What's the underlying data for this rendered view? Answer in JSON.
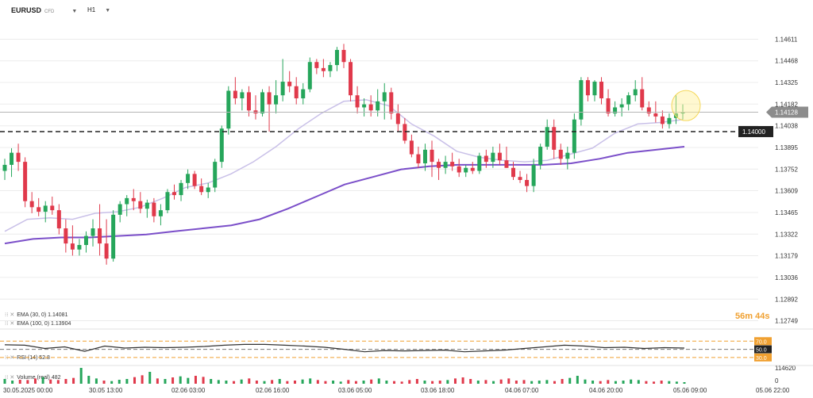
{
  "header": {
    "symbol": "EURUSD",
    "symbol_tag": "CFD",
    "timeframe": "H1"
  },
  "legend": {
    "ema30": "EMA (30, 0) 1.14081",
    "ema100": "EMA (100, 0) 1.13904",
    "rsi": "RSI (14) 52.8",
    "volume": "Volume (real) 482"
  },
  "timer": {
    "minutes": "56m",
    "seconds": "44s"
  },
  "colors": {
    "up": "#26a65b",
    "down": "#e0394b",
    "ema30": "#c9c0e8",
    "ema100": "#7b4fc9",
    "rsi": "#333333",
    "level": "#f0a030",
    "grid": "#ececec"
  },
  "chart_data": {
    "type": "candlestick",
    "price_axis": {
      "ticks": [
        "1.14611",
        "1.14468",
        "1.14325",
        "1.14182",
        "1.14038",
        "1.13895",
        "1.13752",
        "1.13609",
        "1.13465",
        "1.13322",
        "1.13179",
        "1.13036",
        "1.12892",
        "1.12749"
      ],
      "range": [
        1.1271,
        1.1465
      ]
    },
    "current_price": "1.14128",
    "reference_level": "1.14000",
    "time_labels": [
      "30.05.2025 00:00",
      "30.05 13:00",
      "02.06 03:00",
      "02.06 16:00",
      "03.06 05:00",
      "03.06 18:00",
      "04.06 07:00",
      "04.06 20:00",
      "05.06 09:00",
      "05.06 22:00"
    ],
    "candles": [
      {
        "o": 1.1374,
        "h": 1.1382,
        "l": 1.1368,
        "c": 1.1378
      },
      {
        "o": 1.1378,
        "h": 1.1389,
        "l": 1.137,
        "c": 1.1386
      },
      {
        "o": 1.1386,
        "h": 1.1392,
        "l": 1.1374,
        "c": 1.138
      },
      {
        "o": 1.138,
        "h": 1.1383,
        "l": 1.135,
        "c": 1.1354
      },
      {
        "o": 1.1354,
        "h": 1.136,
        "l": 1.1346,
        "c": 1.135
      },
      {
        "o": 1.135,
        "h": 1.1356,
        "l": 1.1344,
        "c": 1.1347
      },
      {
        "o": 1.1347,
        "h": 1.1354,
        "l": 1.134,
        "c": 1.1351
      },
      {
        "o": 1.1351,
        "h": 1.1357,
        "l": 1.1345,
        "c": 1.1348
      },
      {
        "o": 1.1348,
        "h": 1.1352,
        "l": 1.1332,
        "c": 1.1336
      },
      {
        "o": 1.1336,
        "h": 1.1342,
        "l": 1.132,
        "c": 1.1326
      },
      {
        "o": 1.1326,
        "h": 1.1338,
        "l": 1.1318,
        "c": 1.1322
      },
      {
        "o": 1.1322,
        "h": 1.1329,
        "l": 1.1318,
        "c": 1.1325
      },
      {
        "o": 1.1325,
        "h": 1.1334,
        "l": 1.132,
        "c": 1.1331
      },
      {
        "o": 1.1331,
        "h": 1.1342,
        "l": 1.1324,
        "c": 1.1336
      },
      {
        "o": 1.1336,
        "h": 1.1352,
        "l": 1.1318,
        "c": 1.1326
      },
      {
        "o": 1.1326,
        "h": 1.1342,
        "l": 1.1312,
        "c": 1.1316
      },
      {
        "o": 1.1316,
        "h": 1.1348,
        "l": 1.1314,
        "c": 1.1345
      },
      {
        "o": 1.1345,
        "h": 1.1354,
        "l": 1.134,
        "c": 1.1352
      },
      {
        "o": 1.1352,
        "h": 1.1358,
        "l": 1.1344,
        "c": 1.1356
      },
      {
        "o": 1.1356,
        "h": 1.1362,
        "l": 1.1348,
        "c": 1.1354
      },
      {
        "o": 1.1354,
        "h": 1.136,
        "l": 1.1346,
        "c": 1.1349
      },
      {
        "o": 1.1349,
        "h": 1.1355,
        "l": 1.1343,
        "c": 1.1353
      },
      {
        "o": 1.1353,
        "h": 1.1356,
        "l": 1.134,
        "c": 1.1344
      },
      {
        "o": 1.1344,
        "h": 1.1352,
        "l": 1.1338,
        "c": 1.1348
      },
      {
        "o": 1.1348,
        "h": 1.1362,
        "l": 1.1346,
        "c": 1.136
      },
      {
        "o": 1.136,
        "h": 1.1365,
        "l": 1.1355,
        "c": 1.1358
      },
      {
        "o": 1.1358,
        "h": 1.1368,
        "l": 1.1354,
        "c": 1.1366
      },
      {
        "o": 1.1366,
        "h": 1.1375,
        "l": 1.1362,
        "c": 1.1372
      },
      {
        "o": 1.1372,
        "h": 1.1374,
        "l": 1.1362,
        "c": 1.1364
      },
      {
        "o": 1.1364,
        "h": 1.1369,
        "l": 1.1358,
        "c": 1.136
      },
      {
        "o": 1.136,
        "h": 1.1366,
        "l": 1.1356,
        "c": 1.1363
      },
      {
        "o": 1.1363,
        "h": 1.1382,
        "l": 1.136,
        "c": 1.138
      },
      {
        "o": 1.138,
        "h": 1.1404,
        "l": 1.1376,
        "c": 1.1402
      },
      {
        "o": 1.1402,
        "h": 1.143,
        "l": 1.1398,
        "c": 1.1427
      },
      {
        "o": 1.1427,
        "h": 1.1436,
        "l": 1.1418,
        "c": 1.1422
      },
      {
        "o": 1.1422,
        "h": 1.1428,
        "l": 1.1414,
        "c": 1.1426
      },
      {
        "o": 1.1426,
        "h": 1.143,
        "l": 1.141,
        "c": 1.1414
      },
      {
        "o": 1.1414,
        "h": 1.1424,
        "l": 1.1408,
        "c": 1.1412
      },
      {
        "o": 1.1412,
        "h": 1.1428,
        "l": 1.141,
        "c": 1.1426
      },
      {
        "o": 1.1426,
        "h": 1.143,
        "l": 1.14,
        "c": 1.1418
      },
      {
        "o": 1.1418,
        "h": 1.1434,
        "l": 1.1412,
        "c": 1.1424
      },
      {
        "o": 1.1424,
        "h": 1.1448,
        "l": 1.142,
        "c": 1.1433
      },
      {
        "o": 1.1433,
        "h": 1.144,
        "l": 1.1426,
        "c": 1.143
      },
      {
        "o": 1.143,
        "h": 1.1436,
        "l": 1.1418,
        "c": 1.1422
      },
      {
        "o": 1.1422,
        "h": 1.1432,
        "l": 1.1418,
        "c": 1.1428
      },
      {
        "o": 1.1428,
        "h": 1.1449,
        "l": 1.1426,
        "c": 1.1446
      },
      {
        "o": 1.1446,
        "h": 1.1448,
        "l": 1.1438,
        "c": 1.1442
      },
      {
        "o": 1.1442,
        "h": 1.1448,
        "l": 1.1436,
        "c": 1.144
      },
      {
        "o": 1.144,
        "h": 1.1446,
        "l": 1.1436,
        "c": 1.1444
      },
      {
        "o": 1.1444,
        "h": 1.1456,
        "l": 1.144,
        "c": 1.1454
      },
      {
        "o": 1.1454,
        "h": 1.1458,
        "l": 1.1442,
        "c": 1.1446
      },
      {
        "o": 1.1446,
        "h": 1.1448,
        "l": 1.142,
        "c": 1.1424
      },
      {
        "o": 1.1424,
        "h": 1.143,
        "l": 1.1412,
        "c": 1.1416
      },
      {
        "o": 1.1416,
        "h": 1.1422,
        "l": 1.141,
        "c": 1.1418
      },
      {
        "o": 1.1418,
        "h": 1.1424,
        "l": 1.141,
        "c": 1.1414
      },
      {
        "o": 1.1414,
        "h": 1.1428,
        "l": 1.141,
        "c": 1.142
      },
      {
        "o": 1.142,
        "h": 1.1432,
        "l": 1.1408,
        "c": 1.1426
      },
      {
        "o": 1.1426,
        "h": 1.1429,
        "l": 1.1408,
        "c": 1.1412
      },
      {
        "o": 1.1412,
        "h": 1.1418,
        "l": 1.14,
        "c": 1.1405
      },
      {
        "o": 1.1405,
        "h": 1.1409,
        "l": 1.1392,
        "c": 1.1394
      },
      {
        "o": 1.1394,
        "h": 1.1398,
        "l": 1.1383,
        "c": 1.1385
      },
      {
        "o": 1.1385,
        "h": 1.139,
        "l": 1.1376,
        "c": 1.1379
      },
      {
        "o": 1.1379,
        "h": 1.1392,
        "l": 1.1374,
        "c": 1.1388
      },
      {
        "o": 1.1388,
        "h": 1.1394,
        "l": 1.137,
        "c": 1.138
      },
      {
        "o": 1.138,
        "h": 1.1382,
        "l": 1.1368,
        "c": 1.1376
      },
      {
        "o": 1.1376,
        "h": 1.1384,
        "l": 1.1372,
        "c": 1.138
      },
      {
        "o": 1.138,
        "h": 1.1386,
        "l": 1.1374,
        "c": 1.1377
      },
      {
        "o": 1.1377,
        "h": 1.1382,
        "l": 1.137,
        "c": 1.1373
      },
      {
        "o": 1.1373,
        "h": 1.1378,
        "l": 1.137,
        "c": 1.1376
      },
      {
        "o": 1.1376,
        "h": 1.138,
        "l": 1.1372,
        "c": 1.1374
      },
      {
        "o": 1.1374,
        "h": 1.1386,
        "l": 1.1372,
        "c": 1.1384
      },
      {
        "o": 1.1384,
        "h": 1.1388,
        "l": 1.1376,
        "c": 1.138
      },
      {
        "o": 1.138,
        "h": 1.139,
        "l": 1.1376,
        "c": 1.1386
      },
      {
        "o": 1.1386,
        "h": 1.1392,
        "l": 1.1378,
        "c": 1.1381
      },
      {
        "o": 1.1381,
        "h": 1.139,
        "l": 1.1376,
        "c": 1.1376
      },
      {
        "o": 1.1376,
        "h": 1.138,
        "l": 1.1368,
        "c": 1.137
      },
      {
        "o": 1.137,
        "h": 1.1374,
        "l": 1.1366,
        "c": 1.1368
      },
      {
        "o": 1.1368,
        "h": 1.1372,
        "l": 1.136,
        "c": 1.1364
      },
      {
        "o": 1.1364,
        "h": 1.1382,
        "l": 1.136,
        "c": 1.1378
      },
      {
        "o": 1.1378,
        "h": 1.1392,
        "l": 1.1375,
        "c": 1.139
      },
      {
        "o": 1.139,
        "h": 1.1408,
        "l": 1.1388,
        "c": 1.1403
      },
      {
        "o": 1.1403,
        "h": 1.1408,
        "l": 1.1382,
        "c": 1.1388
      },
      {
        "o": 1.1388,
        "h": 1.1392,
        "l": 1.1378,
        "c": 1.1382
      },
      {
        "o": 1.1382,
        "h": 1.139,
        "l": 1.1375,
        "c": 1.1386
      },
      {
        "o": 1.1386,
        "h": 1.1412,
        "l": 1.1382,
        "c": 1.1408
      },
      {
        "o": 1.1408,
        "h": 1.1436,
        "l": 1.1404,
        "c": 1.1434
      },
      {
        "o": 1.1434,
        "h": 1.1436,
        "l": 1.142,
        "c": 1.1424
      },
      {
        "o": 1.1424,
        "h": 1.1434,
        "l": 1.142,
        "c": 1.1433
      },
      {
        "o": 1.1433,
        "h": 1.1436,
        "l": 1.1418,
        "c": 1.1422
      },
      {
        "o": 1.1422,
        "h": 1.1428,
        "l": 1.141,
        "c": 1.1412
      },
      {
        "o": 1.1412,
        "h": 1.142,
        "l": 1.141,
        "c": 1.1416
      },
      {
        "o": 1.1416,
        "h": 1.1422,
        "l": 1.141,
        "c": 1.1418
      },
      {
        "o": 1.1418,
        "h": 1.1426,
        "l": 1.1414,
        "c": 1.1424
      },
      {
        "o": 1.1424,
        "h": 1.1434,
        "l": 1.142,
        "c": 1.1428
      },
      {
        "o": 1.1428,
        "h": 1.1436,
        "l": 1.1414,
        "c": 1.1416
      },
      {
        "o": 1.1416,
        "h": 1.142,
        "l": 1.141,
        "c": 1.1412
      },
      {
        "o": 1.1412,
        "h": 1.142,
        "l": 1.1406,
        "c": 1.141
      },
      {
        "o": 1.141,
        "h": 1.1414,
        "l": 1.1402,
        "c": 1.1405
      },
      {
        "o": 1.1405,
        "h": 1.1412,
        "l": 1.1402,
        "c": 1.1409
      },
      {
        "o": 1.1409,
        "h": 1.1424,
        "l": 1.1405,
        "c": 1.1412
      },
      {
        "o": 1.1412,
        "h": 1.1418,
        "l": 1.1408,
        "c": 1.1413
      }
    ],
    "ema30": [
      1.1334,
      1.1342,
      1.1343,
      1.1342,
      1.1346,
      1.1347,
      1.135,
      1.1356,
      1.1363,
      1.1366,
      1.1372,
      1.138,
      1.139,
      1.1402,
      1.1412,
      1.142,
      1.1421,
      1.1417,
      1.1405,
      1.1397,
      1.1387,
      1.1383,
      1.1381,
      1.138,
      1.1381,
      1.1385,
      1.1389,
      1.1399,
      1.1405,
      1.1406,
      1.1408
    ],
    "ema100": [
      1.1326,
      1.1329,
      1.133,
      1.133,
      1.1331,
      1.1332,
      1.1334,
      1.1336,
      1.1338,
      1.1342,
      1.1349,
      1.1357,
      1.1365,
      1.137,
      1.1375,
      1.1377,
      1.1378,
      1.1378,
      1.1378,
      1.1378,
      1.1379,
      1.1382,
      1.1386,
      1.1388,
      1.139
    ],
    "rsi": {
      "levels": [
        "70.0",
        "50.0",
        "30.0"
      ],
      "values": [
        61,
        60,
        52,
        56,
        45,
        58,
        53,
        55,
        54,
        55,
        57,
        60,
        62,
        62,
        60,
        58,
        55,
        50,
        44,
        47,
        46,
        47,
        48,
        44,
        46,
        48,
        52,
        56,
        60,
        58,
        54,
        55,
        52,
        54,
        53
      ]
    },
    "volume": {
      "max_label": "114620",
      "zero_label": "0",
      "values": [
        18,
        12,
        15,
        14,
        20,
        25,
        16,
        14,
        18,
        22,
        60,
        30,
        20,
        12,
        10,
        15,
        18,
        25,
        32,
        45,
        20,
        18,
        24,
        28,
        22,
        30,
        26,
        18,
        14,
        12,
        10,
        16,
        20,
        12,
        10,
        14,
        18,
        10,
        12,
        16,
        20,
        14,
        10,
        12,
        8,
        14,
        10,
        12,
        16,
        20,
        12,
        10,
        8,
        14,
        18,
        12,
        10,
        12,
        14,
        20,
        24,
        18,
        12,
        14,
        10,
        16,
        20,
        12,
        14,
        10,
        12,
        14,
        10,
        18,
        22,
        30,
        16,
        12,
        10,
        14,
        10,
        12,
        16,
        14,
        10,
        8,
        12,
        10,
        8,
        6
      ]
    }
  }
}
